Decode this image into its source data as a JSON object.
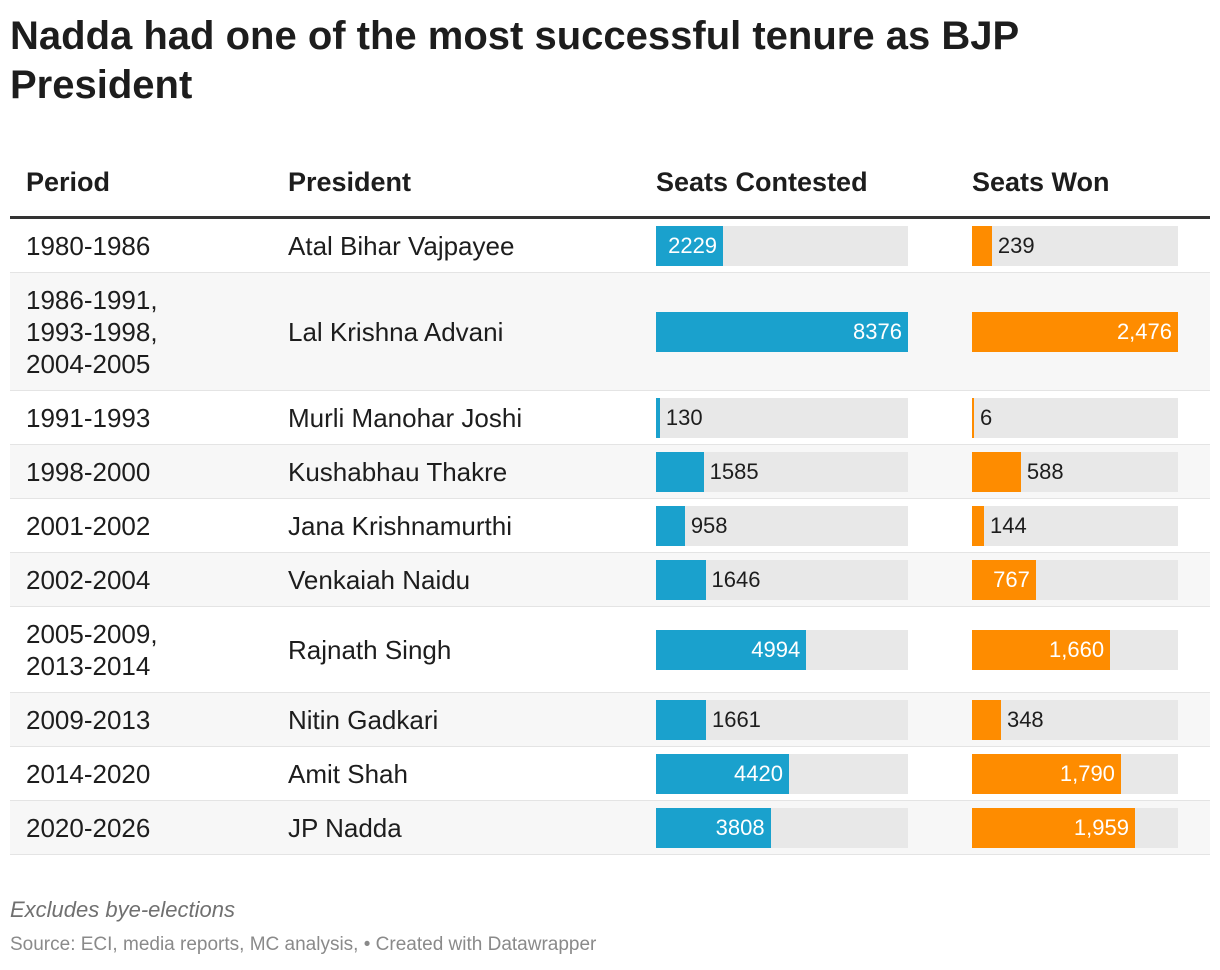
{
  "title": "Nadda had one of the most successful tenure as BJP President",
  "colors": {
    "contested": "#1aa1cd",
    "won": "#fe8c00",
    "track": "#e8e8e8"
  },
  "chart_data": {
    "type": "table",
    "columns": [
      "Period",
      "President",
      "Seats Contested",
      "Seats Won"
    ],
    "contested_max": 8376,
    "won_max": 2476,
    "rows": [
      {
        "period": "1980-1986",
        "president": "Atal Bihar Vajpayee",
        "contested": 2229,
        "contested_label": "2229",
        "won": 239,
        "won_label": "239"
      },
      {
        "period": "1986-1991,\n1993-1998,\n2004-2005",
        "president": "Lal Krishna Advani",
        "contested": 8376,
        "contested_label": "8376",
        "won": 2476,
        "won_label": "2,476"
      },
      {
        "period": "1991-1993",
        "president": "Murli Manohar Joshi",
        "contested": 130,
        "contested_label": "130",
        "won": 6,
        "won_label": "6"
      },
      {
        "period": "1998-2000",
        "president": "Kushabhau Thakre",
        "contested": 1585,
        "contested_label": "1585",
        "won": 588,
        "won_label": "588"
      },
      {
        "period": "2001-2002",
        "president": "Jana Krishnamurthi",
        "contested": 958,
        "contested_label": "958",
        "won": 144,
        "won_label": "144"
      },
      {
        "period": "2002-2004",
        "president": "Venkaiah Naidu",
        "contested": 1646,
        "contested_label": "1646",
        "won": 767,
        "won_label": "767"
      },
      {
        "period": "2005-2009,\n2013-2014",
        "president": "Rajnath Singh",
        "contested": 4994,
        "contested_label": "4994",
        "won": 1660,
        "won_label": "1,660"
      },
      {
        "period": "2009-2013",
        "president": "Nitin Gadkari",
        "contested": 1661,
        "contested_label": "1661",
        "won": 348,
        "won_label": "348"
      },
      {
        "period": "2014-2020",
        "president": "Amit Shah",
        "contested": 4420,
        "contested_label": "4420",
        "won": 1790,
        "won_label": "1,790"
      },
      {
        "period": "2020-2026",
        "president": "JP Nadda",
        "contested": 3808,
        "contested_label": "3808",
        "won": 1959,
        "won_label": "1,959"
      }
    ]
  },
  "note": "Excludes bye-elections",
  "source": "Source: ECI, media reports, MC analysis, • Created with Datawrapper"
}
